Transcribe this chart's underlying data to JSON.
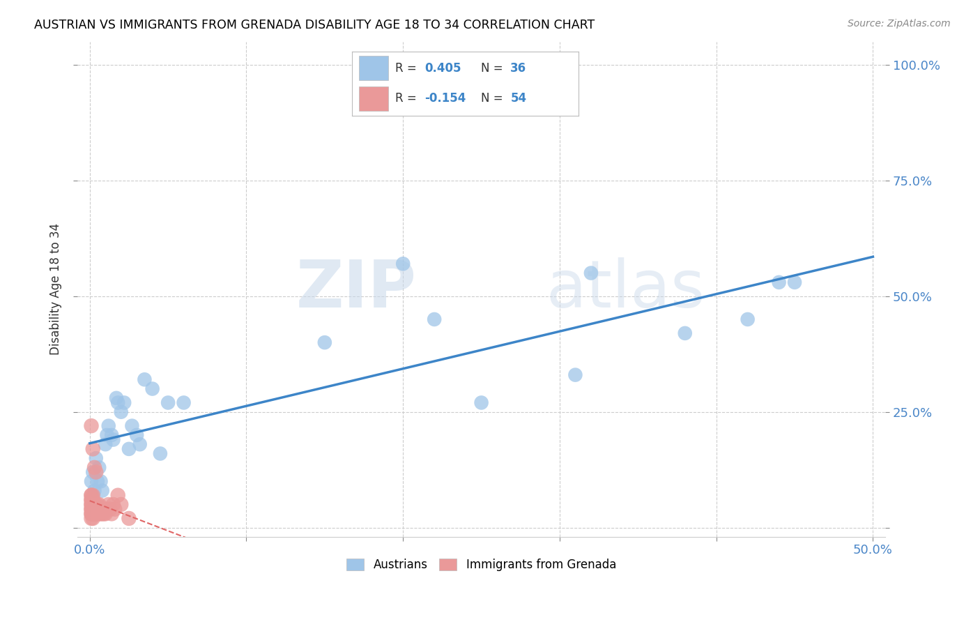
{
  "title": "AUSTRIAN VS IMMIGRANTS FROM GRENADA DISABILITY AGE 18 TO 34 CORRELATION CHART",
  "source": "Source: ZipAtlas.com",
  "ylabel": "Disability Age 18 to 34",
  "legend_r1_label": "R = ",
  "legend_r1_val": "0.405",
  "legend_r1_n_label": "N = ",
  "legend_r1_n_val": "36",
  "legend_r2_label": "R = ",
  "legend_r2_val": "-0.154",
  "legend_r2_n_label": "N = ",
  "legend_r2_n_val": "54",
  "austrians_x": [
    0.001,
    0.002,
    0.003,
    0.004,
    0.005,
    0.006,
    0.007,
    0.008,
    0.01,
    0.011,
    0.012,
    0.014,
    0.015,
    0.017,
    0.018,
    0.02,
    0.022,
    0.025,
    0.027,
    0.03,
    0.032,
    0.035,
    0.04,
    0.045,
    0.05,
    0.06,
    0.15,
    0.2,
    0.22,
    0.25,
    0.31,
    0.32,
    0.38,
    0.42,
    0.44,
    0.45
  ],
  "austrians_y": [
    0.1,
    0.12,
    0.08,
    0.15,
    0.1,
    0.13,
    0.1,
    0.08,
    0.18,
    0.2,
    0.22,
    0.2,
    0.19,
    0.28,
    0.27,
    0.25,
    0.27,
    0.17,
    0.22,
    0.2,
    0.18,
    0.32,
    0.3,
    0.16,
    0.27,
    0.27,
    0.4,
    0.57,
    0.45,
    0.27,
    0.33,
    0.55,
    0.42,
    0.45,
    0.53,
    0.53
  ],
  "grenada_x": [
    0.001,
    0.001,
    0.001,
    0.001,
    0.001,
    0.001,
    0.001,
    0.001,
    0.001,
    0.001,
    0.002,
    0.002,
    0.002,
    0.002,
    0.002,
    0.002,
    0.002,
    0.002,
    0.003,
    0.003,
    0.003,
    0.003,
    0.003,
    0.004,
    0.004,
    0.004,
    0.005,
    0.005,
    0.005,
    0.006,
    0.006,
    0.006,
    0.007,
    0.007,
    0.008,
    0.008,
    0.009,
    0.009,
    0.01,
    0.01,
    0.011,
    0.012,
    0.013,
    0.014,
    0.015,
    0.016,
    0.018,
    0.02,
    0.001,
    0.002,
    0.003,
    0.004,
    0.025,
    0.001
  ],
  "grenada_y": [
    0.02,
    0.03,
    0.03,
    0.04,
    0.04,
    0.05,
    0.05,
    0.06,
    0.06,
    0.07,
    0.02,
    0.03,
    0.03,
    0.04,
    0.05,
    0.05,
    0.06,
    0.07,
    0.03,
    0.03,
    0.04,
    0.05,
    0.05,
    0.03,
    0.04,
    0.05,
    0.03,
    0.04,
    0.05,
    0.03,
    0.04,
    0.05,
    0.03,
    0.04,
    0.03,
    0.04,
    0.03,
    0.04,
    0.03,
    0.04,
    0.04,
    0.05,
    0.04,
    0.03,
    0.05,
    0.04,
    0.07,
    0.05,
    0.22,
    0.17,
    0.13,
    0.12,
    0.02,
    0.07
  ],
  "blue_color": "#9fc5e8",
  "pink_color": "#ea9999",
  "blue_line_color": "#3d85c8",
  "pink_line_color": "#e06666",
  "watermark_zip": "ZIP",
  "watermark_atlas": "atlas",
  "background_color": "#ffffff",
  "grid_color": "#cccccc",
  "axis_color": "#4a86c8",
  "xticks": [
    0.0,
    0.1,
    0.2,
    0.3,
    0.4,
    0.5
  ],
  "yticks": [
    0.0,
    0.25,
    0.5,
    0.75,
    1.0
  ]
}
